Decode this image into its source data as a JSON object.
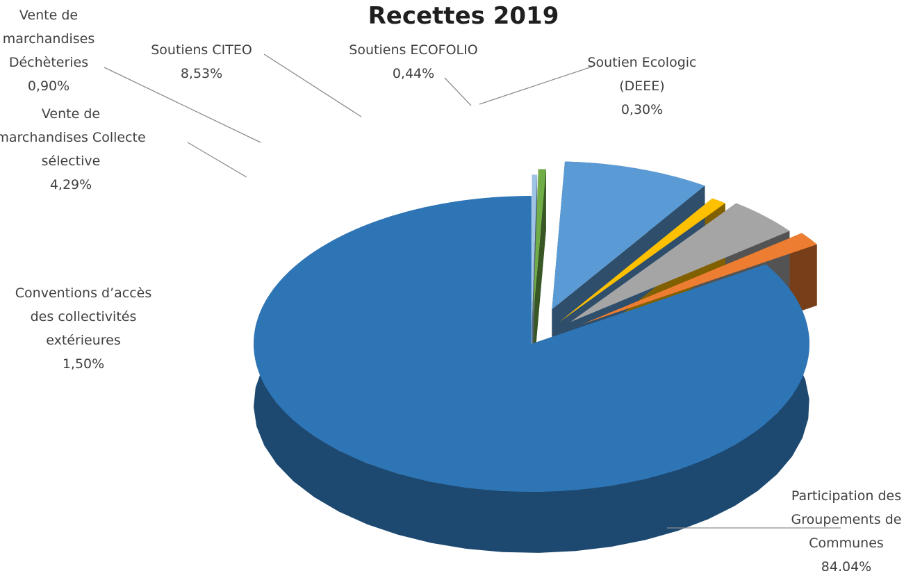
{
  "chart_data": {
    "type": "pie",
    "title": "Recettes 2019",
    "slices": [
      {
        "name": "Participation des Groupements de Communes",
        "label_lines": [
          "Participation des",
          "Groupements de",
          "Communes"
        ],
        "value": 84.04,
        "value_label": "84,04%",
        "color": "#2e75b6"
      },
      {
        "name": "Conventions d'accès des collectivités extérieures",
        "label_lines": [
          "Conventions d’accès",
          "des collectivités",
          "extérieures"
        ],
        "value": 1.5,
        "value_label": "1,50%",
        "color": "#ed7d31"
      },
      {
        "name": "Vente de marchandises Collecte sélective",
        "label_lines": [
          "Vente de",
          "marchandises Collecte",
          "sélective"
        ],
        "value": 4.29,
        "value_label": "4,29%",
        "color": "#a5a5a5"
      },
      {
        "name": "Vente de marchandises Déchèteries",
        "label_lines": [
          "Vente de",
          "marchandises",
          "Déchèteries"
        ],
        "value": 0.9,
        "value_label": "0,90%",
        "color": "#ffc000"
      },
      {
        "name": "Soutiens CITEO",
        "label_lines": [
          "Soutiens CITEO"
        ],
        "value": 8.53,
        "value_label": "8,53%",
        "color": "#5b9bd5"
      },
      {
        "name": "Soutiens ECOFOLIO",
        "label_lines": [
          "Soutiens ECOFOLIO"
        ],
        "value": 0.44,
        "value_label": "0,44%",
        "color": "#70ad47"
      },
      {
        "name": "Soutien Ecologic (DEEE)",
        "label_lines": [
          "Soutien Ecologic",
          "(DEEE)"
        ],
        "value": 0.3,
        "value_label": "0,30%",
        "color": "#9dc3e6"
      }
    ]
  }
}
